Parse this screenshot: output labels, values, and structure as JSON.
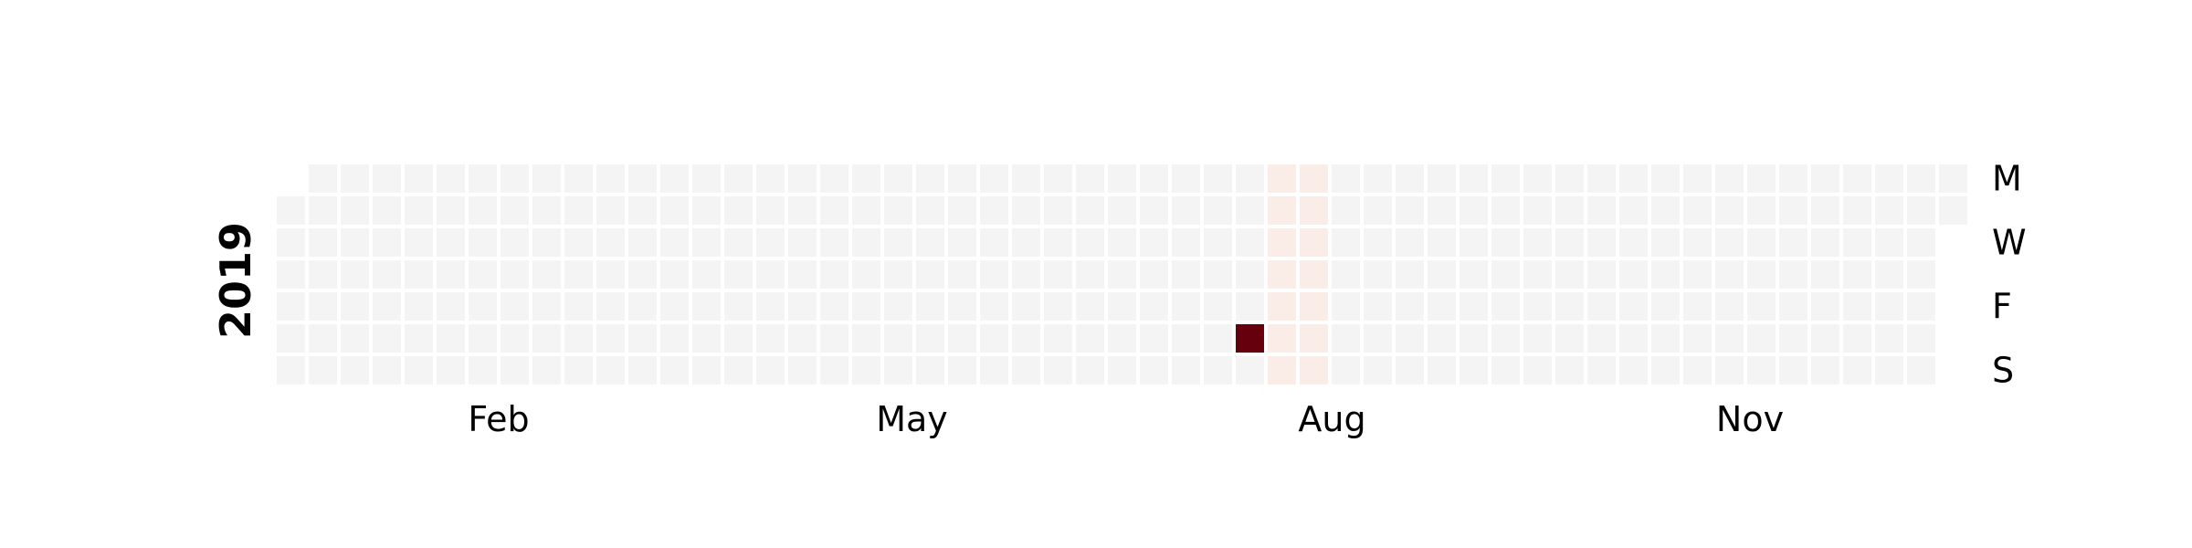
{
  "chart_data": {
    "type": "heatmap",
    "subtype": "calendar",
    "year_label": "2019",
    "year": 2019,
    "start_date": "2019-01-01",
    "end_date": "2019-12-31",
    "weekday_labels": [
      "M",
      "W",
      "F",
      "S"
    ],
    "month_labels": [
      "Feb",
      "May",
      "Aug",
      "Nov"
    ],
    "value_scale": {
      "min": 0,
      "max": 10
    },
    "default_value": 0,
    "values": [
      {
        "date": "2019-08-03",
        "value": 10
      },
      {
        "date": "2019-08-05",
        "value": 0.3
      },
      {
        "date": "2019-08-06",
        "value": 0.3
      },
      {
        "date": "2019-08-07",
        "value": 0.3
      },
      {
        "date": "2019-08-08",
        "value": 0.3
      },
      {
        "date": "2019-08-09",
        "value": 0.3
      },
      {
        "date": "2019-08-10",
        "value": 0.3
      },
      {
        "date": "2019-08-11",
        "value": 0.3
      },
      {
        "date": "2019-08-12",
        "value": 0.3
      },
      {
        "date": "2019-08-13",
        "value": 0.3
      },
      {
        "date": "2019-08-14",
        "value": 0.3
      },
      {
        "date": "2019-08-15",
        "value": 0.3
      },
      {
        "date": "2019-08-16",
        "value": 0.3
      },
      {
        "date": "2019-08-17",
        "value": 0.3
      },
      {
        "date": "2019-08-18",
        "value": 0.3
      }
    ],
    "colors": {
      "empty": "#f4f4f4",
      "low": "#fff4ee",
      "high": "#67000d",
      "cell_border": "#ffffff"
    },
    "grid": false,
    "legend": "none"
  }
}
